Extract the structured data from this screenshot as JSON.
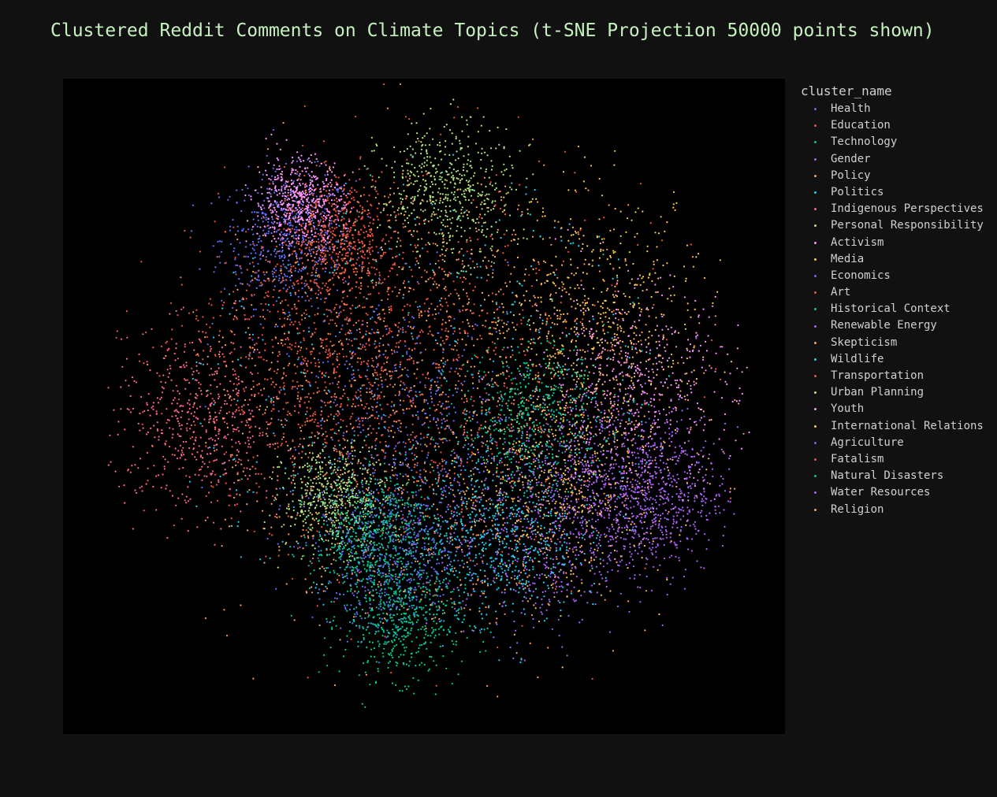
{
  "chart_data": {
    "type": "scatter",
    "title": "Clustered Reddit Comments on Climate Topics (t-SNE Projection 50000 points shown)",
    "xlabel": "",
    "ylabel": "",
    "grid": false,
    "total_points": 50000,
    "legend": {
      "title": "cluster_name",
      "placement": "right"
    },
    "series": [
      {
        "name": "Health",
        "color": "#636efa",
        "center": [
          -38,
          45
        ],
        "spread": 9
      },
      {
        "name": "Education",
        "color": "#ef553b",
        "center": [
          -20,
          15
        ],
        "spread": 22
      },
      {
        "name": "Technology",
        "color": "#00cc96",
        "center": [
          -7,
          -58
        ],
        "spread": 8
      },
      {
        "name": "Gender",
        "color": "#ab63fa",
        "center": [
          50,
          -20
        ],
        "spread": 14
      },
      {
        "name": "Policy",
        "color": "#ffa15a",
        "center": [
          0,
          0
        ],
        "spread": 65
      },
      {
        "name": "Politics",
        "color": "#19d3f3",
        "center": [
          0,
          0
        ],
        "spread": 70
      },
      {
        "name": "Indigenous Perspectives",
        "color": "#ff6692",
        "center": [
          -62,
          -5
        ],
        "spread": 12
      },
      {
        "name": "Personal Responsibility",
        "color": "#b6e880",
        "center": [
          5,
          58
        ],
        "spread": 9
      },
      {
        "name": "Activism",
        "color": "#ff97ff",
        "center": [
          55,
          5
        ],
        "spread": 14
      },
      {
        "name": "Media",
        "color": "#fecb52",
        "center": [
          45,
          25
        ],
        "spread": 16
      },
      {
        "name": "Economics",
        "color": "#636efa",
        "center": [
          -5,
          -5
        ],
        "spread": 18
      },
      {
        "name": "Art",
        "color": "#ef553b",
        "center": [
          -30,
          8
        ],
        "spread": 20
      },
      {
        "name": "Historical Context",
        "color": "#00cc96",
        "center": [
          28,
          -2
        ],
        "spread": 10
      },
      {
        "name": "Renewable Energy",
        "color": "#ab63fa",
        "center": [
          30,
          -35
        ],
        "spread": 14
      },
      {
        "name": "Skepticism",
        "color": "#ffa15a",
        "center": [
          10,
          0
        ],
        "spread": 35
      },
      {
        "name": "Wildlife",
        "color": "#19d3f3",
        "center": [
          18,
          -35
        ],
        "spread": 11
      },
      {
        "name": "Transportation",
        "color": "#ef553b",
        "center": [
          -25,
          45
        ],
        "spread": 8
      },
      {
        "name": "Urban Planning",
        "color": "#b6e880",
        "center": [
          -25,
          -25
        ],
        "spread": 7
      },
      {
        "name": "Youth",
        "color": "#ff97ff",
        "center": [
          -35,
          55
        ],
        "spread": 6
      },
      {
        "name": "International Relations",
        "color": "#fecb52",
        "center": [
          35,
          -20
        ],
        "spread": 15
      },
      {
        "name": "Agriculture",
        "color": "#636efa",
        "center": [
          -10,
          -40
        ],
        "spread": 10
      },
      {
        "name": "Fatalism",
        "color": "#ef553b",
        "center": [
          0,
          10
        ],
        "spread": 30
      },
      {
        "name": "Natural Disasters",
        "color": "#00cc96",
        "center": [
          -15,
          -35
        ],
        "spread": 8
      },
      {
        "name": "Water Resources",
        "color": "#ab63fa",
        "center": [
          60,
          -25
        ],
        "spread": 10
      },
      {
        "name": "Religion",
        "color": "#ffa15a",
        "center": [
          0,
          0
        ],
        "spread": 68
      }
    ]
  }
}
